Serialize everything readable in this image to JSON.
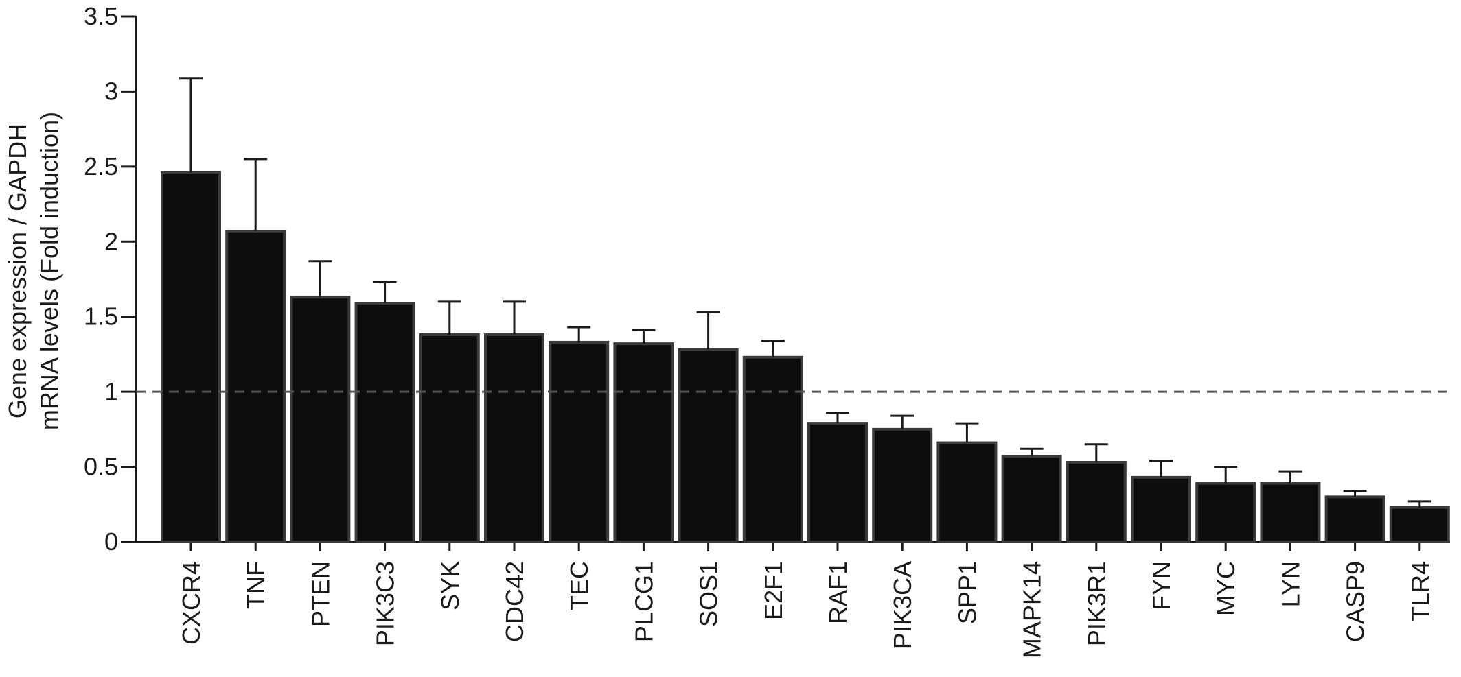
{
  "chart_data": {
    "type": "bar",
    "ylabel_line1": "Gene expression / GAPDH",
    "ylabel_line2": "mRNA levels (Fold induction)",
    "xlabel": "",
    "ylim": [
      0,
      3.5
    ],
    "yticks": [
      0,
      0.5,
      1,
      1.5,
      2,
      2.5,
      3,
      3.5
    ],
    "ytick_labels": [
      "0",
      "0.5",
      "1",
      "1.5",
      "2",
      "2.5",
      "3",
      "3.5"
    ],
    "reference_line": 1,
    "grid": false,
    "categories": [
      "CXCR4",
      "TNF",
      "PTEN",
      "PIK3C3",
      "SYK",
      "CDC42",
      "TEC",
      "PLCG1",
      "SOS1",
      "E2F1",
      "RAF1",
      "PIK3CA",
      "SPP1",
      "MAPK14",
      "PIK3R1",
      "FYN",
      "MYC",
      "LYN",
      "CASP9",
      "TLR4"
    ],
    "values": [
      2.46,
      2.07,
      1.63,
      1.59,
      1.38,
      1.38,
      1.33,
      1.32,
      1.28,
      1.23,
      0.79,
      0.75,
      0.66,
      0.57,
      0.53,
      0.43,
      0.39,
      0.39,
      0.3,
      0.23
    ],
    "error_upper": [
      0.63,
      0.48,
      0.24,
      0.14,
      0.22,
      0.22,
      0.1,
      0.09,
      0.25,
      0.11,
      0.07,
      0.09,
      0.13,
      0.05,
      0.12,
      0.11,
      0.11,
      0.08,
      0.04,
      0.04
    ],
    "bar_color": "#0d0d0d",
    "bar_edge_color": "#3a3a3a",
    "reference_line_color": "#555555"
  }
}
